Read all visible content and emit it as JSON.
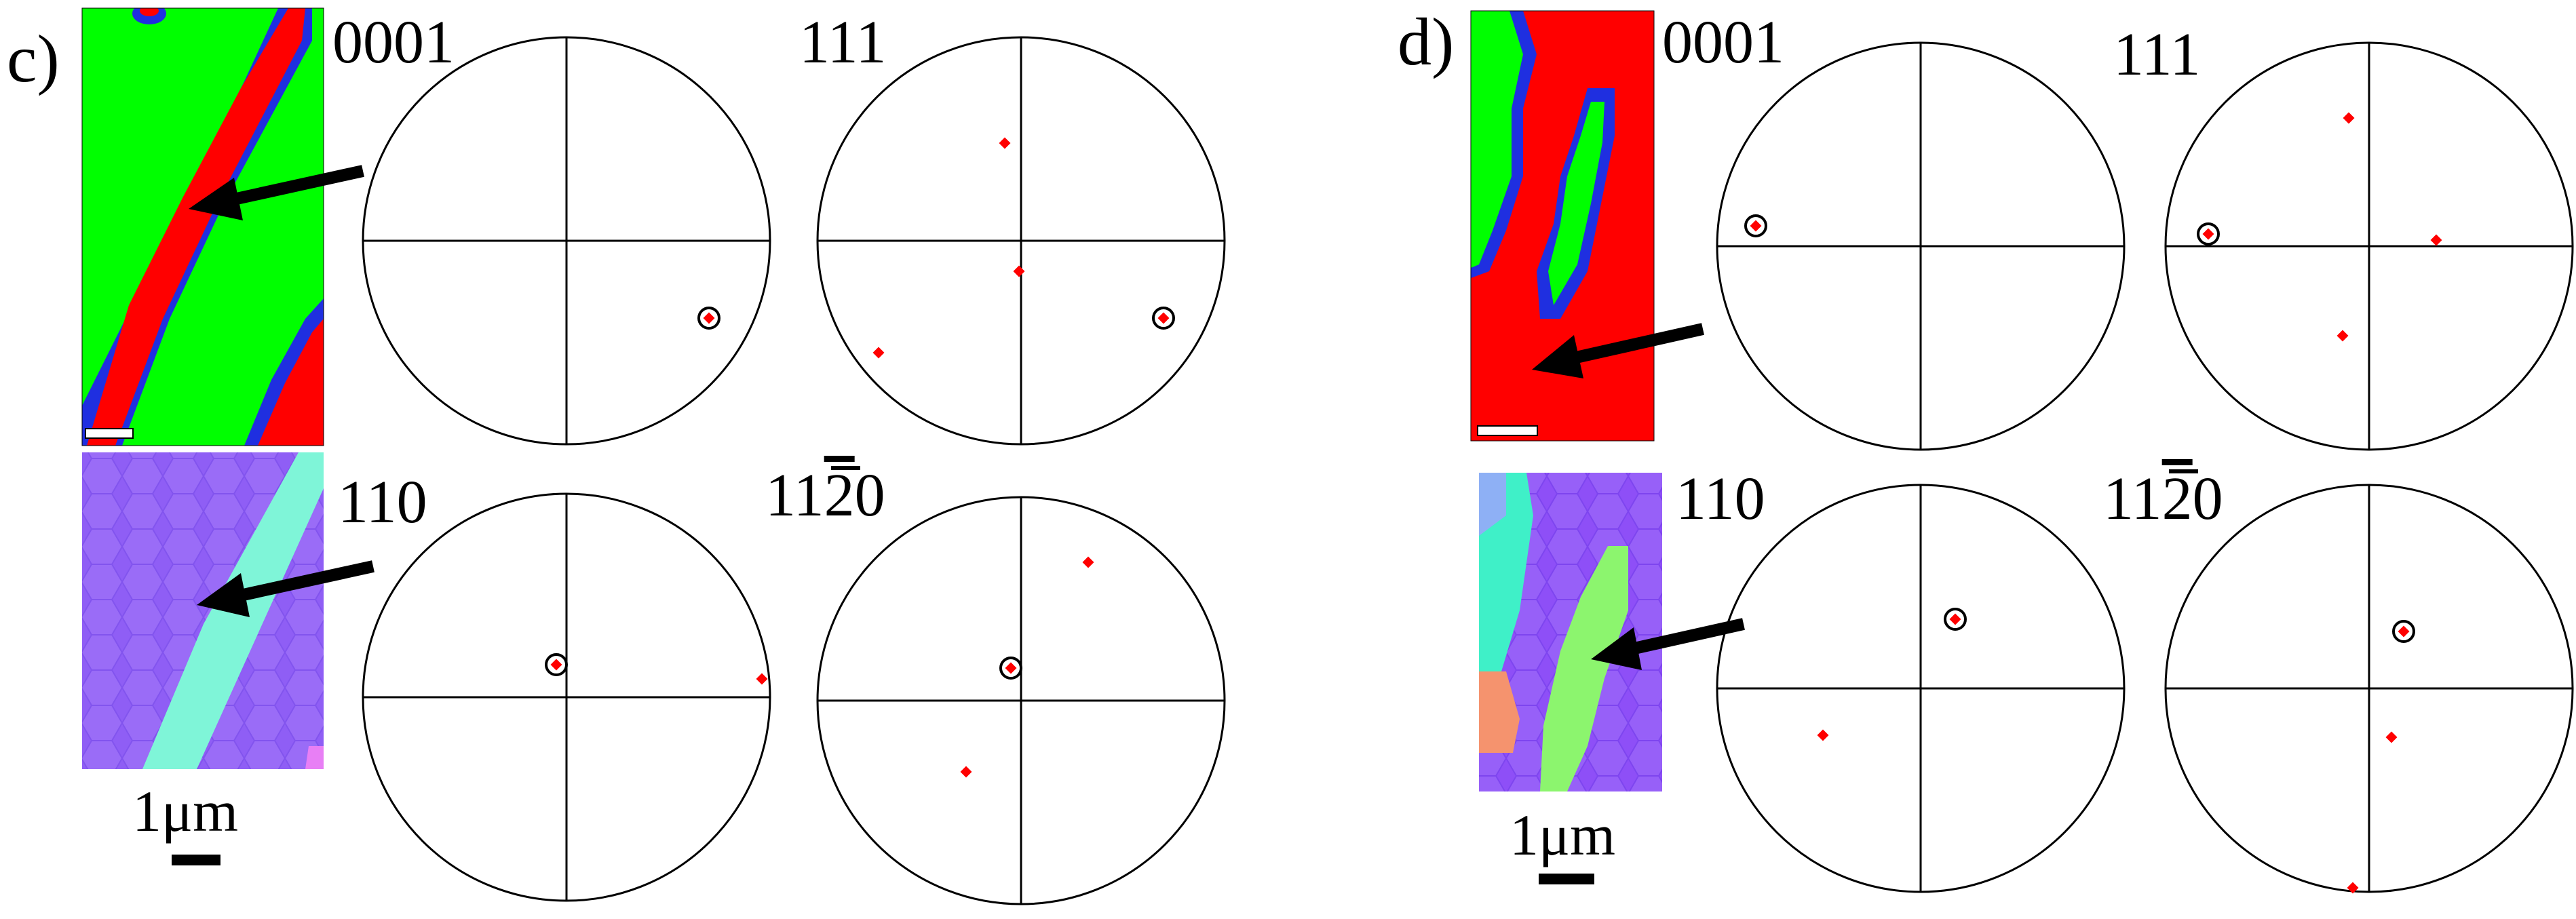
{
  "panels": [
    {
      "id": "c",
      "label": "c)",
      "pole_figures": [
        {
          "label": "0001",
          "circled": [
            [
              0.7,
              -0.38
            ]
          ],
          "points": []
        },
        {
          "label": "111",
          "circled": [
            [
              0.7,
              -0.38
            ]
          ],
          "points": [
            [
              -0.08,
              0.48
            ],
            [
              -0.01,
              -0.15
            ],
            [
              -0.7,
              -0.55
            ]
          ]
        },
        {
          "label": "110",
          "circled": [
            [
              -0.05,
              0.16
            ]
          ],
          "points": [
            [
              0.96,
              0.09
            ]
          ]
        },
        {
          "label": "11̅2̅0",
          "label_plain": "11",
          "label_bar": "2",
          "label_tail": "0",
          "circled": [
            [
              -0.05,
              0.16
            ]
          ],
          "points": [
            [
              0.33,
              0.68
            ],
            [
              -0.27,
              -0.35
            ]
          ]
        }
      ],
      "map_top": {
        "colors": {
          "green": "#00ff00",
          "red": "#ff0000",
          "blue": "#1f2fe0"
        },
        "scale_bar_label": "1 μm"
      },
      "map_bottom": {
        "colors": {
          "violet": "#8a5cf5",
          "cyan": "#7ff5d8"
        }
      },
      "scale_label": "1μm"
    },
    {
      "id": "d",
      "label": "d)",
      "pole_figures": [
        {
          "label": "0001",
          "circled": [
            [
              -0.81,
              0.1
            ]
          ],
          "points": []
        },
        {
          "label": "111",
          "circled": [
            [
              -0.79,
              0.06
            ]
          ],
          "points": [
            [
              -0.1,
              0.63
            ],
            [
              0.33,
              0.03
            ],
            [
              -0.13,
              -0.44
            ]
          ]
        },
        {
          "label": "110",
          "circled": [
            [
              0.17,
              0.34
            ]
          ],
          "points": [
            [
              -0.48,
              -0.23
            ]
          ]
        },
        {
          "label": "11̅2̅0",
          "label_plain": "11",
          "label_bar": "2",
          "label_tail": "0",
          "circled": [
            [
              0.17,
              0.28
            ]
          ],
          "points": [
            [
              0.11,
              -0.24
            ],
            [
              -0.08,
              -0.98
            ]
          ]
        }
      ],
      "map_top": {
        "colors": {
          "green": "#00ff00",
          "red": "#ff0000",
          "blue": "#1f2fe0"
        },
        "scale_bar_label": "1 μm"
      },
      "map_bottom": {
        "colors": {
          "violet": "#8a5cf5",
          "cyan": "#3ff0c8",
          "lightgreen": "#8cf56e",
          "orange": "#f5936e"
        }
      },
      "scale_label": "1μm"
    }
  ],
  "colors": {
    "point": "#ff0000",
    "circle_stroke": "#000000",
    "frame": "#000000"
  }
}
